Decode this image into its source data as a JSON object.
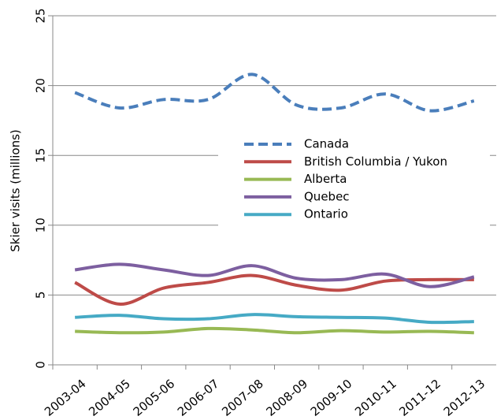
{
  "chart_data": {
    "type": "line",
    "y_label": "Skier visits (millions)",
    "categories": [
      "2003-04",
      "2004-05",
      "2005-06",
      "2006-07",
      "2007-08",
      "2008-09",
      "2009-10",
      "2010-11",
      "2011-12",
      "2012-13"
    ],
    "series": [
      {
        "name": "Canada",
        "color": "#4a7ebb",
        "dashed": true,
        "values": [
          19.5,
          18.4,
          19.0,
          19.0,
          20.8,
          18.6,
          18.4,
          19.4,
          18.2,
          18.9
        ]
      },
      {
        "name": "British Columbia / Yukon",
        "color": "#be4b48",
        "dashed": false,
        "values": [
          5.9,
          4.35,
          5.5,
          5.9,
          6.4,
          5.7,
          5.35,
          6.0,
          6.1,
          6.1
        ]
      },
      {
        "name": "Alberta",
        "color": "#98b954",
        "dashed": false,
        "values": [
          2.4,
          2.3,
          2.35,
          2.6,
          2.5,
          2.3,
          2.45,
          2.35,
          2.4,
          2.3
        ]
      },
      {
        "name": "Quebec",
        "color": "#7d5fa0",
        "dashed": false,
        "values": [
          6.8,
          7.2,
          6.8,
          6.4,
          7.1,
          6.2,
          6.1,
          6.5,
          5.6,
          6.3
        ]
      },
      {
        "name": "Ontario",
        "color": "#46aac5",
        "dashed": false,
        "values": [
          3.4,
          3.55,
          3.3,
          3.3,
          3.6,
          3.45,
          3.4,
          3.35,
          3.05,
          3.1
        ]
      }
    ],
    "ylim": [
      0,
      25
    ],
    "yticks": [
      0,
      5,
      10,
      15,
      20,
      25
    ],
    "grid": true
  }
}
